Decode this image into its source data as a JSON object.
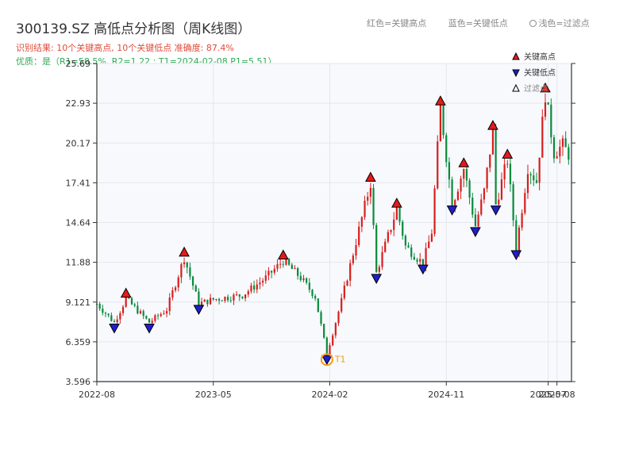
{
  "page": {
    "title": "300139.SZ 高低点分析图（周K线图）",
    "result_line": "识别结果: 10个关键高点, 10个关键低点   准确度: 87.4%",
    "quality_line": "优质：是（R1=58.5%, R2=1.22 ; T1=2024-02-08 P1=5.51）",
    "header_legend": {
      "red": "红色=关键高点",
      "blue": "蓝色=关键低点",
      "light": "浅色=过滤点"
    }
  },
  "chart_data": {
    "type": "candlestick",
    "yticks": [
      "3.596",
      "6.359",
      "9.121",
      "11.88",
      "14.64",
      "17.41",
      "20.17",
      "22.93",
      "25.69"
    ],
    "ylim": [
      3.596,
      25.69
    ],
    "xticks": [
      {
        "label": "2022-08",
        "t": 0
      },
      {
        "label": "2023-05",
        "t": 40
      },
      {
        "label": "2024-02",
        "t": 80
      },
      {
        "label": "2024-11",
        "t": 120
      },
      {
        "label": "2025-07",
        "t": 155
      },
      {
        "label": "2025-08",
        "t": 158
      }
    ],
    "xlim": [
      0,
      163
    ],
    "grid": true,
    "legend": {
      "position": "top-right",
      "entries": [
        {
          "label": "关键高点",
          "color": "#e41a1c",
          "shape": "up"
        },
        {
          "label": "关键低点",
          "color": "#1f1fcc",
          "shape": "down"
        },
        {
          "label": "过滤点",
          "color": "#ffffff",
          "shape": "up"
        }
      ]
    },
    "colors": {
      "up": "#d81e1e",
      "down": "#0a8a3c",
      "high": "#e41a1c",
      "low": "#1f1fcc",
      "t1": "#f39c12"
    },
    "key_highs": [
      {
        "t": 10,
        "v": 9.35
      },
      {
        "t": 30,
        "v": 12.2
      },
      {
        "t": 64,
        "v": 12.0
      },
      {
        "t": 94,
        "v": 17.4
      },
      {
        "t": 103,
        "v": 15.6
      },
      {
        "t": 118,
        "v": 22.7
      },
      {
        "t": 126,
        "v": 18.4
      },
      {
        "t": 136,
        "v": 21.0
      },
      {
        "t": 141,
        "v": 19.0
      },
      {
        "t": 154,
        "v": 23.6
      }
    ],
    "key_lows": [
      {
        "t": 6,
        "v": 7.7
      },
      {
        "t": 18,
        "v": 7.7
      },
      {
        "t": 35,
        "v": 9.0
      },
      {
        "t": 79,
        "v": 5.51
      },
      {
        "t": 96,
        "v": 11.15
      },
      {
        "t": 112,
        "v": 11.8
      },
      {
        "t": 122,
        "v": 15.9
      },
      {
        "t": 130,
        "v": 14.4
      },
      {
        "t": 137,
        "v": 15.9
      },
      {
        "t": 144,
        "v": 12.8
      }
    ],
    "t1": {
      "label": "T1",
      "t": 79,
      "v": 5.51
    },
    "anchors": [
      [
        0,
        9.0
      ],
      [
        6,
        7.7
      ],
      [
        10,
        9.35
      ],
      [
        18,
        7.7
      ],
      [
        24,
        8.6
      ],
      [
        30,
        12.2
      ],
      [
        35,
        9.0
      ],
      [
        40,
        9.3
      ],
      [
        50,
        9.6
      ],
      [
        58,
        10.8
      ],
      [
        64,
        12.0
      ],
      [
        70,
        10.8
      ],
      [
        75,
        9.5
      ],
      [
        79,
        5.51
      ],
      [
        84,
        9.2
      ],
      [
        88,
        12.5
      ],
      [
        94,
        17.4
      ],
      [
        96,
        11.15
      ],
      [
        103,
        15.6
      ],
      [
        106,
        13.0
      ],
      [
        112,
        11.8
      ],
      [
        115,
        14.0
      ],
      [
        118,
        22.7
      ],
      [
        122,
        15.9
      ],
      [
        126,
        18.4
      ],
      [
        130,
        14.4
      ],
      [
        133,
        16.8
      ],
      [
        136,
        21.0
      ],
      [
        137,
        15.9
      ],
      [
        141,
        19.0
      ],
      [
        144,
        12.8
      ],
      [
        148,
        18.5
      ],
      [
        151,
        17.5
      ],
      [
        154,
        23.6
      ],
      [
        157,
        19.5
      ],
      [
        160,
        20.0
      ],
      [
        162,
        19.4
      ]
    ]
  }
}
